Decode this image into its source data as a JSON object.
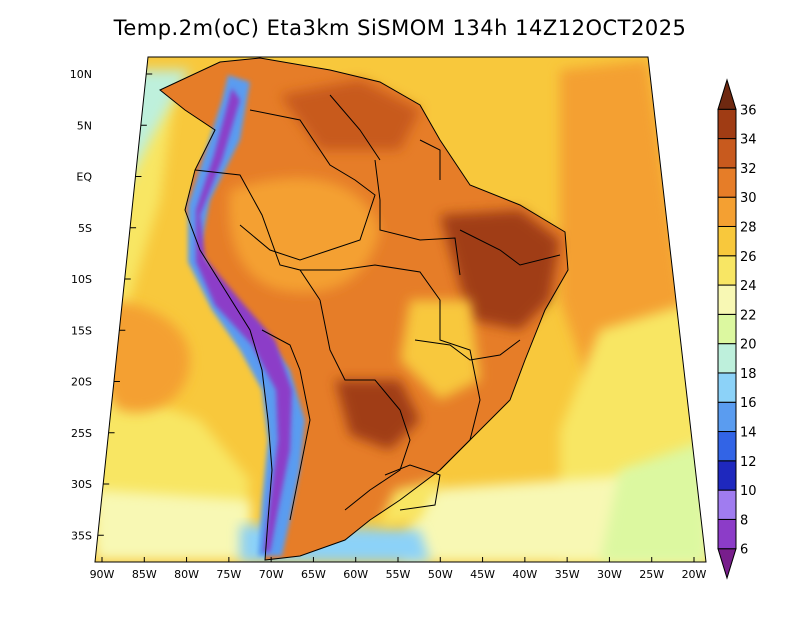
{
  "title": "Temp.2m(oC) Eta3km SiSMOM 134h 14Z12OCT2025",
  "map": {
    "projection": "conic",
    "lon_range": [
      -90,
      -20
    ],
    "lat_range": [
      -37,
      12
    ],
    "lat_labels": [
      "10N",
      "5N",
      "EQ",
      "5S",
      "10S",
      "15S",
      "20S",
      "25S",
      "30S",
      "35S"
    ],
    "lat_values": [
      10,
      5,
      0,
      -5,
      -10,
      -15,
      -20,
      -25,
      -30,
      -35
    ],
    "lon_labels": [
      "90W",
      "85W",
      "80W",
      "75W",
      "70W",
      "65W",
      "60W",
      "55W",
      "50W",
      "45W",
      "40W",
      "35W",
      "30W",
      "25W",
      "20W"
    ],
    "lon_values": [
      -90,
      -85,
      -80,
      -75,
      -70,
      -65,
      -60,
      -55,
      -50,
      -45,
      -40,
      -35,
      -30,
      -25,
      -20
    ]
  },
  "colorbar": {
    "labels": [
      "6",
      "8",
      "10",
      "12",
      "14",
      "16",
      "18",
      "20",
      "22",
      "24",
      "26",
      "28",
      "30",
      "32",
      "34",
      "36"
    ],
    "colors": [
      "#781e8c",
      "#8c3cc8",
      "#a07cf0",
      "#1e28be",
      "#3264e6",
      "#5a9cf0",
      "#8cd2f8",
      "#bef0dc",
      "#dcf8a0",
      "#f8f8b4",
      "#f8e664",
      "#f8c83c",
      "#f4a032",
      "#e67d28",
      "#c85a1e",
      "#a03c14",
      "#6e2810"
    ],
    "unit": "oC"
  }
}
